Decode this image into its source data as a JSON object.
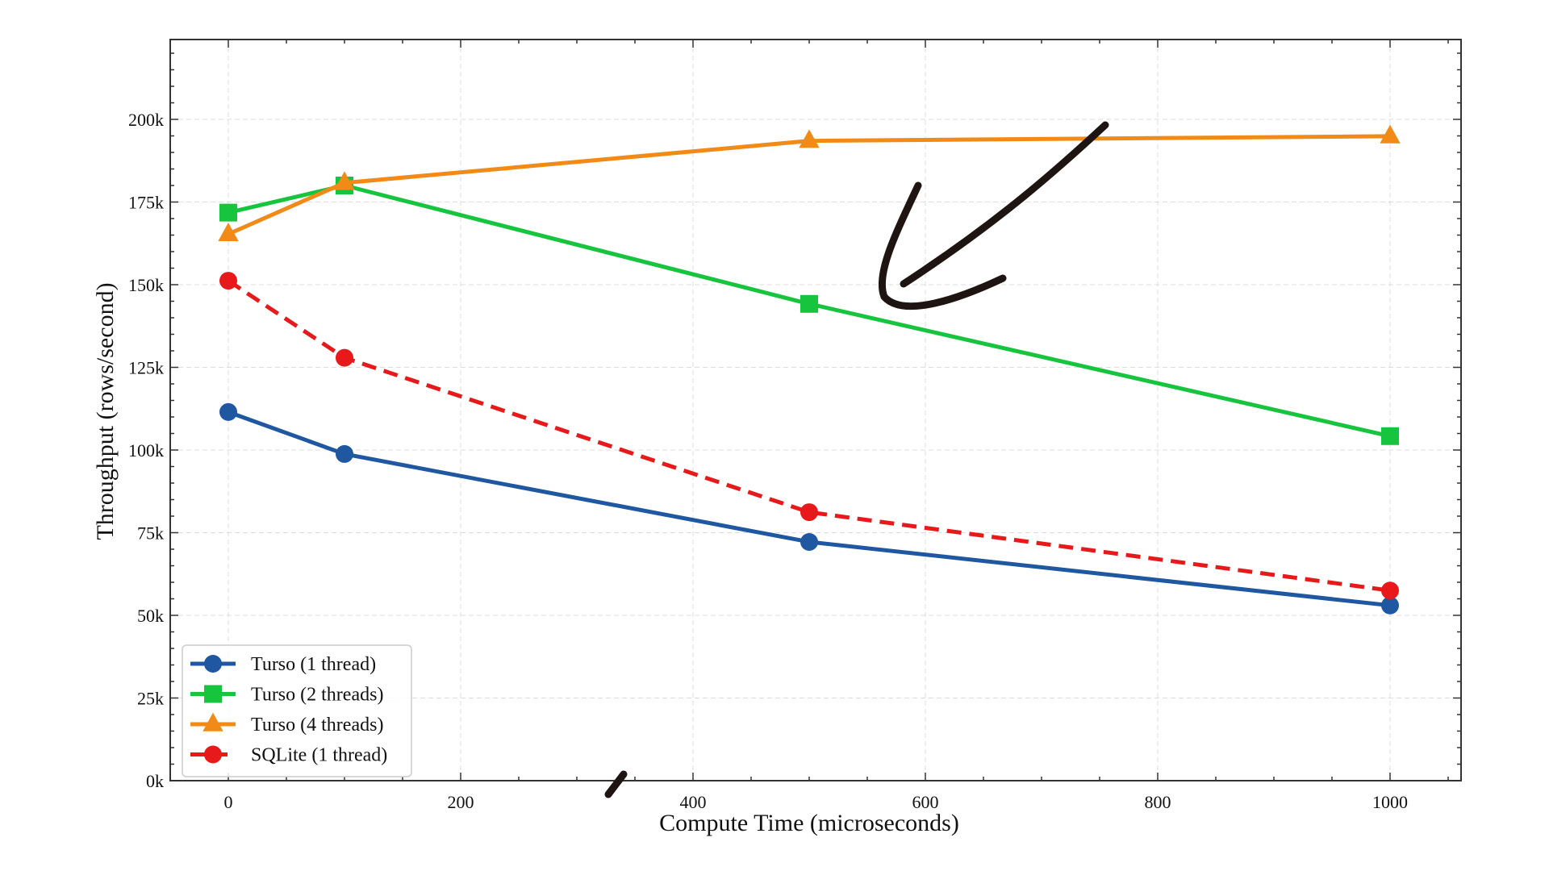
{
  "chart_data": {
    "type": "line",
    "title": "",
    "xlabel": "Compute Time (microseconds)",
    "ylabel": "Throughput (rows/second)",
    "x": [
      0,
      100,
      500,
      1000
    ],
    "xlim": [
      -50,
      1061
    ],
    "ylim": [
      0,
      224
    ],
    "xticks": [
      0,
      200,
      400,
      600,
      800,
      1000
    ],
    "xtick_labels": [
      "0",
      "200",
      "400",
      "600",
      "800",
      "1000"
    ],
    "yticks": [
      0,
      25,
      50,
      75,
      100,
      125,
      150,
      175,
      200
    ],
    "ytick_labels": [
      "0k",
      "25k",
      "50k",
      "75k",
      "100k",
      "125k",
      "150k",
      "175k",
      "200k"
    ],
    "y_unit": "thousands of rows/second",
    "grid": true,
    "legend_position": "lower left",
    "series": [
      {
        "name": "Turso (1 thread)",
        "values": [
          111.5,
          98.8,
          72.2,
          53.0
        ],
        "color": "#1f57a0",
        "marker": "circle",
        "dash": false
      },
      {
        "name": "Turso (2 threads)",
        "values": [
          171.8,
          180.0,
          144.2,
          104.2
        ],
        "color": "#16c43e",
        "marker": "square",
        "dash": false
      },
      {
        "name": "Turso (4 threads)",
        "values": [
          165.3,
          180.8,
          193.5,
          194.9
        ],
        "color": "#f28a17",
        "marker": "triangle",
        "dash": false
      },
      {
        "name": "SQLite (1 thread)",
        "values": [
          151.2,
          127.9,
          81.2,
          57.5
        ],
        "color": "#e8191a",
        "marker": "circle",
        "dash": true
      }
    ],
    "annotations": [
      {
        "type": "hand-drawn-arrow",
        "color": "#1e1512",
        "points_to": "Turso (2 threads) near x=550"
      },
      {
        "type": "hand-drawn-stroke",
        "color": "#1e1512",
        "location": "below x-axis near x=330"
      }
    ]
  }
}
